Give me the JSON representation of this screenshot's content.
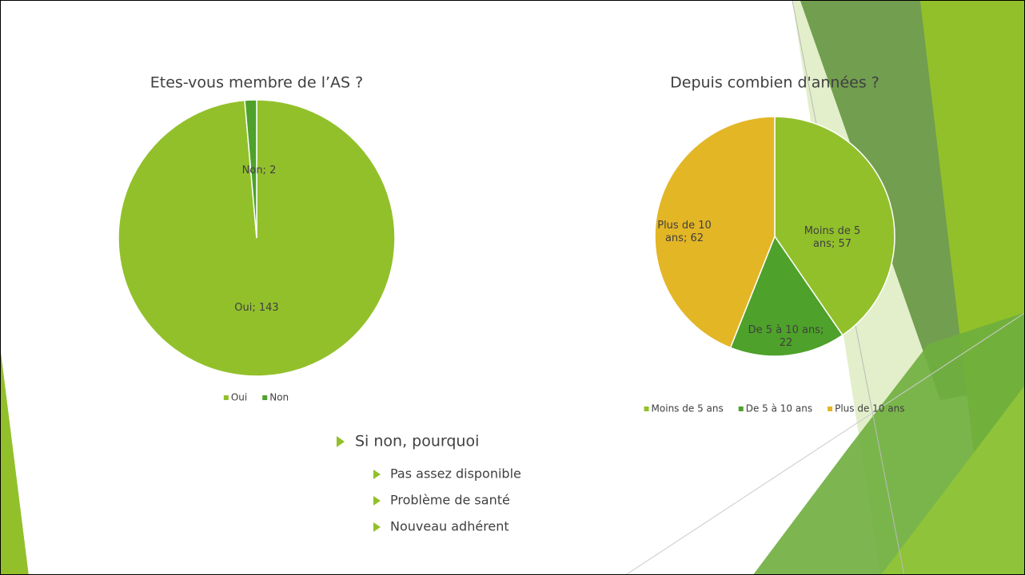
{
  "chart_data": [
    {
      "type": "pie",
      "title": "Etes-vous membre de l’AS ?",
      "categories": [
        "Oui",
        "Non"
      ],
      "values": [
        143,
        2
      ],
      "value_labels": [
        "Oui; 143",
        "Non; 2"
      ],
      "colors": [
        "#92c02b",
        "#4ea12a"
      ],
      "legend": "bottom"
    },
    {
      "type": "pie",
      "title": "Depuis combien d'années ?",
      "categories": [
        "Moins de 5 ans",
        "De 5 à 10 ans",
        "Plus de 10 ans"
      ],
      "values": [
        57,
        22,
        62
      ],
      "value_labels": [
        "Moins de 5 ans; 57",
        "De 5 à 10 ans; 22",
        "Plus de 10 ans; 62"
      ],
      "colors": [
        "#92c02b",
        "#4ea12a",
        "#e3b626"
      ],
      "legend": "bottom"
    }
  ],
  "bullets": {
    "heading": "Si non, pourquoi",
    "items": [
      "Pas assez disponible",
      "Problème de santé",
      "Nouveau adhérent"
    ]
  }
}
